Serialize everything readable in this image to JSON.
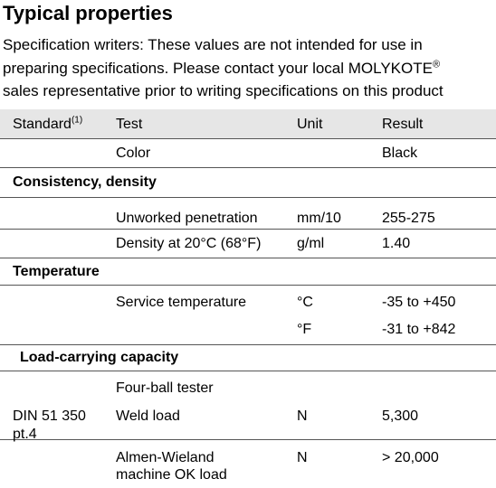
{
  "title": "Typical properties",
  "intro": {
    "line1": "Specification writers: These values are not intended for use in",
    "line2_prefix": "preparing specifications. Please contact your local MOLYKOTE",
    "line2_reg": "®",
    "line3": "sales representative prior to writing specifications on this product"
  },
  "table": {
    "headers": {
      "standard": "Standard",
      "standard_note": "(1)",
      "test": "Test",
      "unit": "Unit",
      "result": "Result"
    },
    "color_row": {
      "test": "Color",
      "result": "Black"
    },
    "groups": {
      "consistency": {
        "label": "Consistency, density",
        "rows": [
          {
            "test": "Unworked penetration",
            "unit": "mm/10",
            "result": "255-275"
          },
          {
            "test": "Density at 20°C (68°F)",
            "unit": "g/ml",
            "result": "1.40"
          }
        ]
      },
      "temperature": {
        "label": "Temperature",
        "rows": [
          {
            "test": "Service temperature",
            "unit": "°C",
            "result": "-35 to +450"
          },
          {
            "unit": "°F",
            "result": "-31 to +842"
          }
        ]
      },
      "load": {
        "label": "Load-carrying capacity",
        "subheader": "Four-ball tester",
        "weld": {
          "standard_line1": "DIN 51 350",
          "standard_line2": "pt.4",
          "test": "Weld load",
          "unit": "N",
          "result": "5,300"
        },
        "almen": {
          "test_line1": "Almen-Wieland",
          "test_line2": "machine OK load",
          "unit": "N",
          "result": "> 20,000"
        }
      }
    }
  }
}
